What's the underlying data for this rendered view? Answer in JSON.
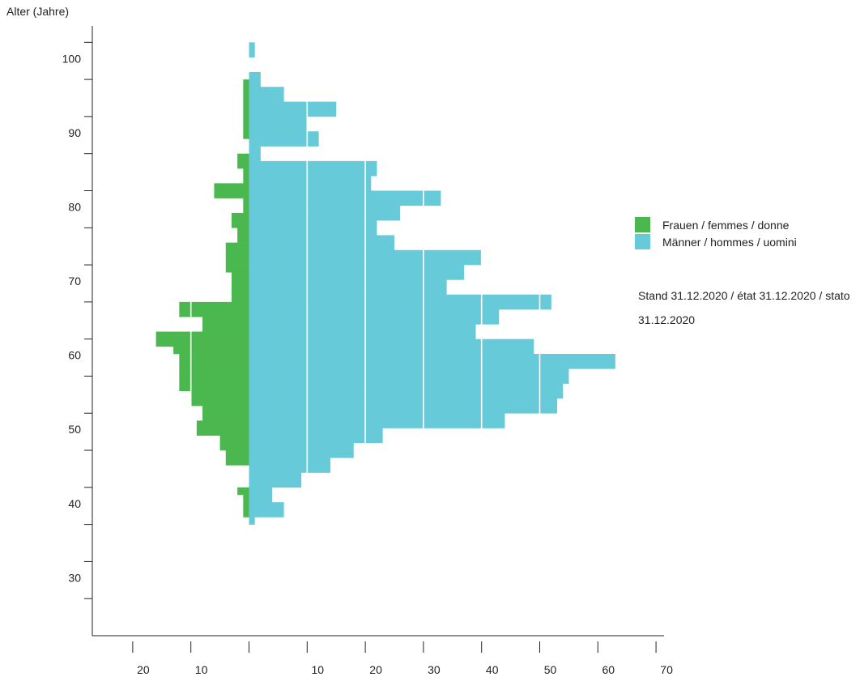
{
  "chart_data": {
    "type": "bar",
    "orientation": "horizontal",
    "ylabel": "Alter (Jahre)",
    "xlabel": "",
    "ylim": [
      21,
      103
    ],
    "y_ticks": [
      100,
      90,
      80,
      70,
      60,
      50,
      40,
      30
    ],
    "x_tick_labels": [
      {
        "value": -20,
        "label": "20"
      },
      {
        "value": -10,
        "label": "10"
      },
      {
        "value": 10,
        "label": "10"
      },
      {
        "value": 20,
        "label": "20"
      },
      {
        "value": 30,
        "label": "30"
      },
      {
        "value": 40,
        "label": "40"
      },
      {
        "value": 50,
        "label": "50"
      },
      {
        "value": 60,
        "label": "60"
      },
      {
        "value": 70,
        "label": "70"
      }
    ],
    "x_ticks": [
      -20,
      -10,
      0,
      10,
      20,
      30,
      40,
      50,
      60,
      70
    ],
    "xlim": [
      -27,
      70
    ],
    "gridlines_inside_bars": [
      10,
      20,
      30,
      40,
      50
    ],
    "series": [
      {
        "name": "Frauen / femmes / donne",
        "color": "#4bb84f",
        "side": "left",
        "ages": [
          36,
          37,
          38,
          39,
          40,
          41,
          42,
          43,
          44,
          45,
          46,
          47,
          48,
          49,
          50,
          51,
          52,
          53,
          54,
          55,
          56,
          57,
          58,
          59,
          60,
          61,
          62,
          63,
          64,
          65,
          66,
          67,
          68,
          69,
          70,
          71,
          72,
          73,
          74,
          75,
          76,
          77,
          78,
          79,
          80,
          81,
          82,
          83,
          84,
          85,
          86,
          87,
          88,
          89,
          90,
          91,
          92,
          93,
          94,
          95,
          96,
          97,
          98,
          99,
          100,
          101
        ],
        "values": [
          0,
          1,
          1,
          1,
          2,
          0,
          0,
          0,
          4,
          4,
          5,
          5,
          9,
          9,
          8,
          8,
          10,
          10,
          12,
          12,
          12,
          12,
          12,
          13,
          16,
          16,
          8,
          8,
          12,
          12,
          3,
          3,
          3,
          3,
          4,
          4,
          4,
          4,
          2,
          2,
          3,
          3,
          1,
          1,
          6,
          6,
          1,
          1,
          2,
          2,
          0,
          0,
          1,
          1,
          1,
          1,
          1,
          1,
          1,
          1,
          0,
          0,
          0,
          0,
          0,
          0
        ]
      },
      {
        "name": "Männer / hommes / uomini",
        "color": "#66cad8",
        "side": "right",
        "ages": [
          36,
          37,
          38,
          39,
          40,
          41,
          42,
          43,
          44,
          45,
          46,
          47,
          48,
          49,
          50,
          51,
          52,
          53,
          54,
          55,
          56,
          57,
          58,
          59,
          60,
          61,
          62,
          63,
          64,
          65,
          66,
          67,
          68,
          69,
          70,
          71,
          72,
          73,
          74,
          75,
          76,
          77,
          78,
          79,
          80,
          81,
          82,
          83,
          84,
          85,
          86,
          87,
          88,
          89,
          90,
          91,
          92,
          93,
          94,
          95,
          96,
          97,
          98,
          99,
          100,
          101
        ],
        "values": [
          1,
          6,
          6,
          4,
          4,
          9,
          9,
          14,
          14,
          18,
          18,
          23,
          23,
          44,
          44,
          53,
          53,
          54,
          54,
          55,
          55,
          63,
          63,
          49,
          49,
          39,
          39,
          43,
          43,
          52,
          52,
          34,
          34,
          37,
          37,
          40,
          40,
          25,
          25,
          22,
          22,
          26,
          26,
          33,
          33,
          21,
          21,
          22,
          22,
          2,
          2,
          12,
          12,
          10,
          10,
          15,
          15,
          6,
          6,
          2,
          2,
          0,
          0,
          1,
          1,
          0
        ]
      }
    ]
  },
  "legend": {
    "items": [
      {
        "label": "Frauen / femmes / donne",
        "color": "#4bb84f"
      },
      {
        "label": "Männer / hommes / uomini",
        "color": "#66cad8"
      }
    ]
  },
  "note": "Stand 31.12.2020 / état 31.12.2020 / stato 31.12.2020"
}
